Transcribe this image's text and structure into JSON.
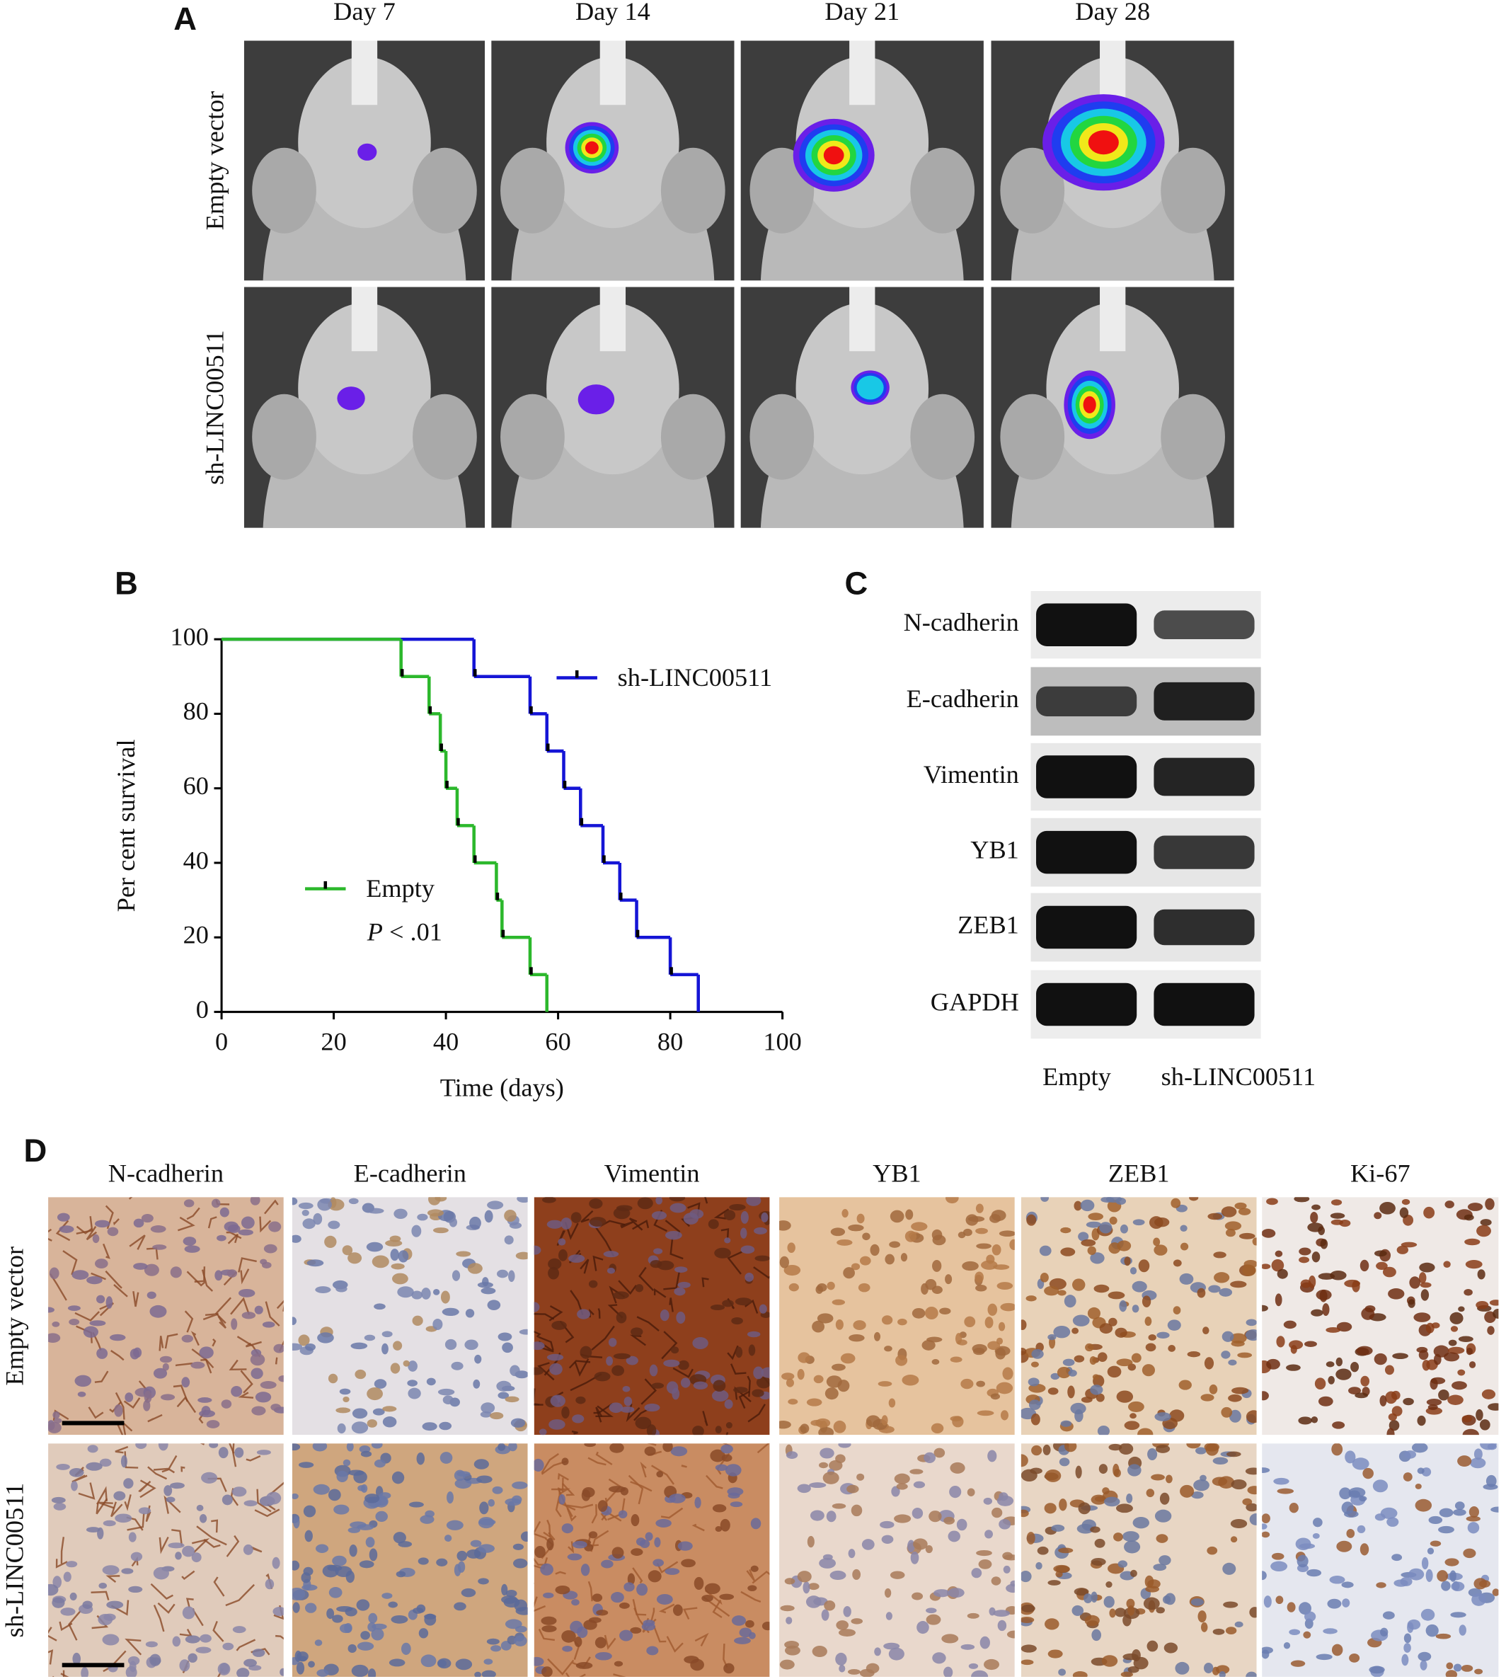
{
  "panel_a": {
    "label": "A",
    "columns": [
      "Day 7",
      "Day 14",
      "Day 21",
      "Day 28"
    ],
    "rows": [
      "Empty vector",
      "sh-LINC00511"
    ]
  },
  "chart_data": {
    "type": "step",
    "panel_label": "B",
    "xlabel": "Time (days)",
    "ylabel": "Per cent survival",
    "xlim": [
      0,
      100
    ],
    "ylim": [
      0,
      100
    ],
    "xticks": [
      0,
      20,
      40,
      60,
      80,
      100
    ],
    "yticks": [
      0,
      20,
      40,
      60,
      80,
      100
    ],
    "series": [
      {
        "name": "sh-LINC00511",
        "color": "#1515d6",
        "x": [
          0,
          45,
          55,
          58,
          61,
          64,
          68,
          71,
          74,
          80,
          85
        ],
        "values": [
          100,
          90,
          80,
          70,
          60,
          50,
          40,
          30,
          20,
          10,
          0
        ]
      },
      {
        "name": "Empty",
        "color": "#2cb82c",
        "x": [
          0,
          32,
          37,
          39,
          40,
          42,
          45,
          49,
          50,
          55,
          58
        ],
        "values": [
          100,
          90,
          80,
          70,
          60,
          50,
          40,
          30,
          20,
          10,
          0
        ]
      }
    ],
    "annotation": {
      "italic": "P",
      "text": " < .01"
    }
  },
  "panel_c": {
    "label": "C",
    "proteins": [
      "N-cadherin",
      "E-cadherin",
      "Vimentin",
      "YB1",
      "ZEB1",
      "GAPDH"
    ],
    "lanes": [
      "Empty",
      "sh-LINC00511"
    ]
  },
  "panel_d": {
    "label": "D",
    "columns": [
      "N-cadherin",
      "E-cadherin",
      "Vimentin",
      "YB1",
      "ZEB1",
      "Ki-67"
    ],
    "rows": [
      "Empty vector",
      "sh-LINC00511"
    ]
  }
}
